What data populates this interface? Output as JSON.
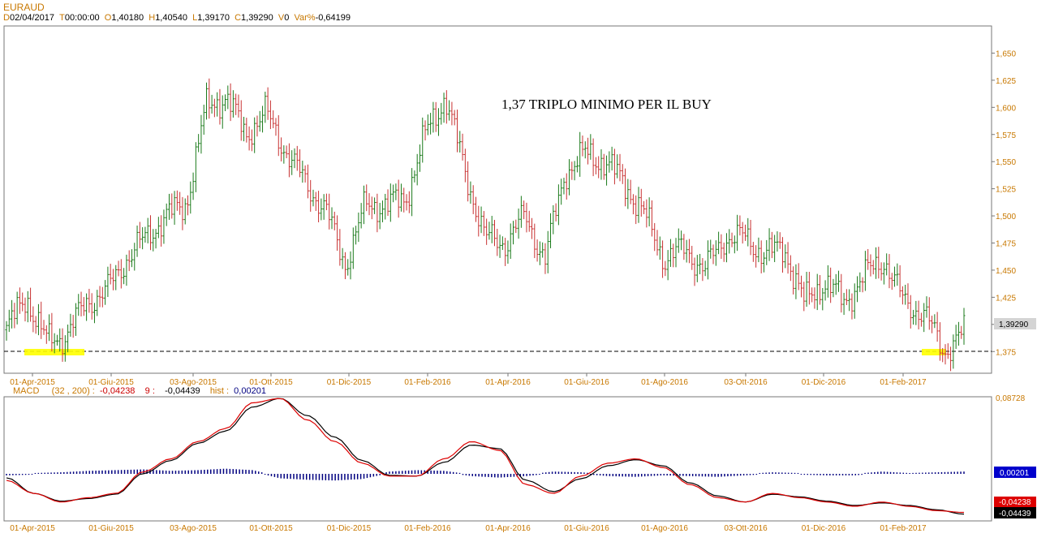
{
  "header": {
    "symbol": "EURAUD",
    "ohlc": [
      {
        "key": "D",
        "value": "02/04/2017"
      },
      {
        "key": "T",
        "value": "00:00:00"
      },
      {
        "key": "O",
        "value": "1,40180"
      },
      {
        "key": "H",
        "value": "1,40540"
      },
      {
        "key": "L",
        "value": "1,39170"
      },
      {
        "key": "C",
        "value": "1,39290"
      },
      {
        "key": "V",
        "value": "0"
      },
      {
        "key": "Var%",
        "value": "-0,64199"
      }
    ]
  },
  "annotation": "1,37 TRIPLO MINIMO PER IL BUY",
  "price_label": "1,39290",
  "macd_info": {
    "name": "MACD",
    "params": "(32 , 200) :",
    "macd": "-0,04238",
    "signal_key": "9 :",
    "signal": "-0,04439",
    "hist_key": "hist :",
    "hist": "0,00201"
  },
  "colors": {
    "up": "#1a7a1a",
    "down": "#c83232",
    "macd": "#dd0000",
    "signal": "#000000",
    "hist": "#000080",
    "highlight": "#ffff00",
    "axis_label": "#c87800"
  },
  "chart_data": [
    {
      "type": "candlestick",
      "title": "EURAUD",
      "x_ticks": [
        "01-Apr-2015",
        "01-Giu-2015",
        "03-Ago-2015",
        "01-Ott-2015",
        "01-Dic-2015",
        "01-Feb-2016",
        "01-Apr-2016",
        "01-Giu-2016",
        "01-Ago-2016",
        "03-Ott-2016",
        "01-Dic-2016",
        "01-Feb-2017"
      ],
      "y_ticks": [
        "1,375",
        "1,400",
        "1,425",
        "1,450",
        "1,475",
        "1,500",
        "1,525",
        "1,550",
        "1,575",
        "1,600",
        "1,625",
        "1,650"
      ],
      "ylim": [
        1.355,
        1.675
      ],
      "path_x": [
        "01-Apr-2015",
        "15-Apr-2015",
        "01-May-2015",
        "15-May-2015",
        "01-Giu-2015",
        "15-Giu-2015",
        "01-Jul-2015",
        "20-Jul-2015",
        "03-Ago-2015",
        "10-Ago-2015",
        "24-Ago-2015",
        "10-Sep-2015",
        "25-Sep-2015",
        "01-Ott-2015",
        "15-Ott-2015",
        "01-Nov-2015",
        "15-Nov-2015",
        "01-Dic-2015",
        "15-Dic-2015",
        "01-Jan-2016",
        "15-Jan-2016",
        "01-Feb-2016",
        "10-Feb-2016",
        "01-Mar-2016",
        "15-Mar-2016",
        "01-Apr-2016",
        "15-Apr-2016",
        "01-May-2016",
        "15-May-2016",
        "01-Giu-2016",
        "15-Giu-2016",
        "01-Jul-2016",
        "15-Jul-2016",
        "01-Ago-2016",
        "15-Ago-2016",
        "01-Sep-2016",
        "15-Sep-2016",
        "03-Ott-2016",
        "15-Ott-2016",
        "01-Nov-2016",
        "15-Nov-2016",
        "01-Dic-2016",
        "15-Dic-2016",
        "01-Jan-2017",
        "15-Jan-2017",
        "01-Feb-2017",
        "15-Feb-2017",
        "01-Mar-2017",
        "02/04/2017"
      ],
      "path_close": [
        1.395,
        1.425,
        1.385,
        1.39,
        1.42,
        1.43,
        1.46,
        1.48,
        1.5,
        1.51,
        1.6,
        1.61,
        1.575,
        1.595,
        1.56,
        1.53,
        1.505,
        1.455,
        1.51,
        1.51,
        1.515,
        1.575,
        1.61,
        1.54,
        1.48,
        1.475,
        1.5,
        1.46,
        1.54,
        1.557,
        1.55,
        1.53,
        1.5,
        1.46,
        1.47,
        1.45,
        1.48,
        1.48,
        1.465,
        1.47,
        1.42,
        1.44,
        1.42,
        1.445,
        1.46,
        1.42,
        1.41,
        1.375,
        1.393
      ],
      "support_level": 1.37,
      "support_label": "1,37 TRIPLO MINIMO PER IL BUY"
    },
    {
      "type": "line",
      "title": "MACD",
      "series": [
        {
          "name": "MACD",
          "values": [
            -0.005,
            -0.02,
            -0.03,
            -0.025,
            -0.02,
            0.005,
            0.02,
            0.04,
            0.055,
            0.085,
            0.09,
            0.065,
            0.04,
            0.015,
            0.0,
            0.0,
            0.02,
            0.04,
            0.03,
            -0.01,
            -0.02,
            0.0,
            0.015,
            0.02,
            0.01,
            -0.01,
            -0.025,
            -0.03,
            -0.02,
            -0.025,
            -0.03,
            -0.035,
            -0.03,
            -0.035,
            -0.04,
            -0.042
          ]
        },
        {
          "name": "9",
          "values": [
            -0.002,
            -0.02,
            -0.029,
            -0.026,
            -0.021,
            0.003,
            0.018,
            0.038,
            0.052,
            0.08,
            0.09,
            0.07,
            0.045,
            0.018,
            0.001,
            0.0,
            0.016,
            0.036,
            0.032,
            -0.005,
            -0.018,
            -0.003,
            0.012,
            0.019,
            0.012,
            -0.008,
            -0.023,
            -0.03,
            -0.021,
            -0.024,
            -0.029,
            -0.034,
            -0.031,
            -0.034,
            -0.039,
            -0.044
          ]
        },
        {
          "name": "hist",
          "values": [
            -0.001,
            0.0,
            0.001,
            0.003,
            0.004,
            0.005,
            0.003,
            0.004,
            0.006,
            0.004,
            -0.005,
            -0.007,
            -0.008,
            -0.006,
            0.002,
            0.004,
            0.003,
            -0.002,
            -0.004,
            -0.002,
            0.002,
            0.001,
            -0.002,
            -0.003,
            -0.001,
            -0.002,
            -0.003,
            -0.001,
            0.001,
            0.0,
            -0.001,
            -0.001,
            0.002,
            0.0,
            0.001,
            0.002
          ]
        }
      ],
      "ylim": [
        -0.05,
        0.09
      ],
      "y_ticks": [
        "0,08728"
      ],
      "value_labels": [
        "0,00201",
        "-0,04238",
        "-0,04439"
      ]
    }
  ]
}
